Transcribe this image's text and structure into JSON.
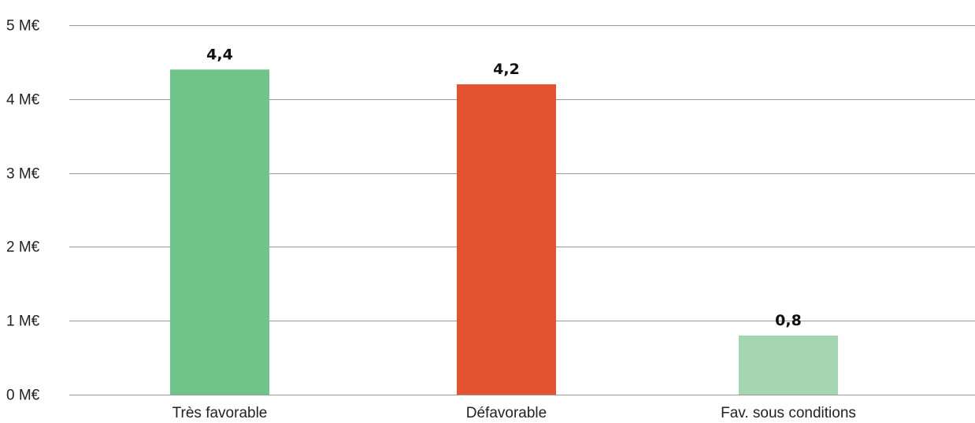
{
  "chart_data": {
    "type": "bar",
    "categories": [
      "Très favorable",
      "Défavorable",
      "Fav. sous conditions"
    ],
    "values": [
      4.4,
      4.2,
      0.8
    ],
    "data_labels": [
      "4,4",
      "4,2",
      "0,8"
    ],
    "bar_colors": [
      "#70c489",
      "#e5522f",
      "#a6d5b1"
    ],
    "ylim": [
      0,
      5
    ],
    "yticks": [
      0,
      1,
      2,
      3,
      4,
      5
    ],
    "ytick_labels": [
      "0 M€",
      "1 M€",
      "2 M€",
      "3 M€",
      "4 M€",
      "5 M€"
    ],
    "grid": true,
    "legend": "none",
    "title": "",
    "xlabel": "",
    "ylabel": ""
  }
}
